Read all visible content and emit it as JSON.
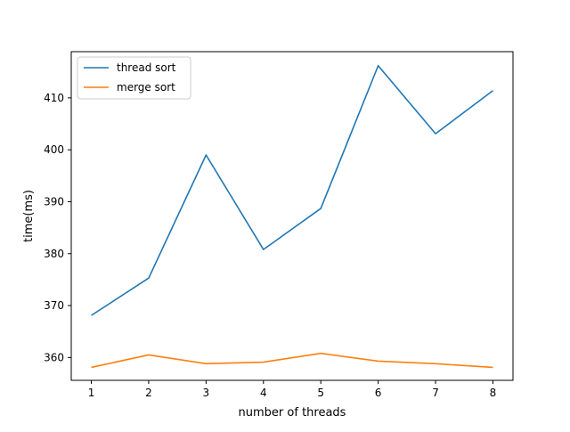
{
  "chart_data": {
    "type": "line",
    "title": "",
    "xlabel": "number of threads",
    "ylabel": "time(ms)",
    "x": [
      1,
      2,
      3,
      4,
      5,
      6,
      7,
      8
    ],
    "xticks": [
      "1",
      "2",
      "3",
      "4",
      "5",
      "6",
      "7",
      "8"
    ],
    "yticks": [
      "360",
      "370",
      "380",
      "390",
      "400",
      "410"
    ],
    "xlim": [
      0.65,
      8.35
    ],
    "ylim": [
      355.6,
      418.9
    ],
    "grid": false,
    "legend_position": "top-left",
    "series": [
      {
        "name": "thread sort",
        "color": "#1f77b4",
        "values": [
          368.1,
          375.3,
          399.0,
          380.8,
          388.7,
          416.2,
          403.1,
          411.4
        ]
      },
      {
        "name": "merge sort",
        "color": "#ff7f0e",
        "values": [
          358.1,
          360.5,
          358.8,
          359.1,
          360.8,
          359.3,
          358.8,
          358.1
        ]
      }
    ]
  }
}
